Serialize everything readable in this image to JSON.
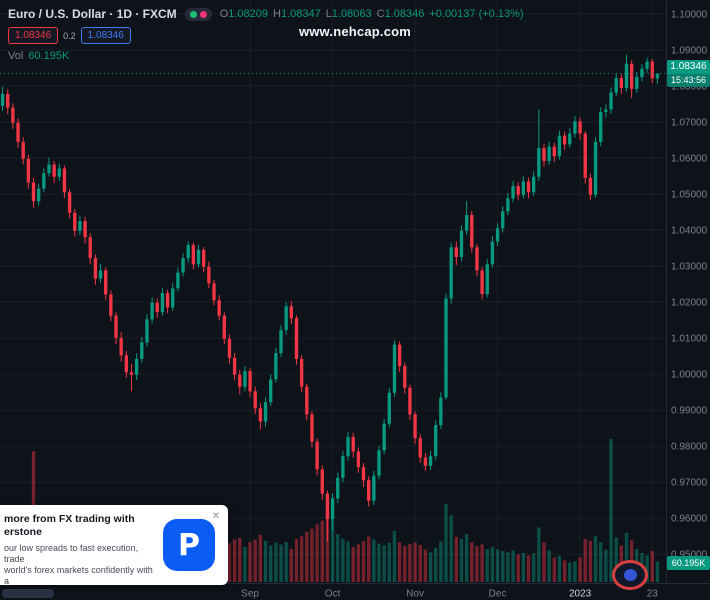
{
  "header": {
    "symbol_title": "Euro / U.S. Dollar · 1D · FXCM",
    "ohlc": {
      "o_label": "O",
      "o": "1.08209",
      "h_label": "H",
      "h": "1.08347",
      "l_label": "L",
      "l": "1.08063",
      "c_label": "C",
      "c": "1.08346",
      "change": "+0.00137 (+0.13%)"
    },
    "sell_badge": "1.08346",
    "spread": "0.2",
    "buy_badge": "1.08346",
    "volume_label": "Vol",
    "volume_value": "60.195K"
  },
  "watermark": "www.nehcap.com",
  "price_scale": {
    "last_price": "1.08346",
    "countdown": "15:43:56",
    "volume_badge": "60.195K"
  },
  "ad": {
    "title_line1": "more from FX trading with",
    "title_line2": "erstone",
    "body_line1": "our low spreads to fast execution, trade",
    "body_line2": "world's forex markets confidently with a",
    "body_line3": "ated broker.",
    "close_label": "✕",
    "logo_letter": "P"
  },
  "colors": {
    "up": "#089981",
    "down": "#f23645",
    "up_vol": "rgba(8,153,129,0.45)",
    "down_vol": "rgba(242,54,69,0.45)",
    "grid": "rgba(255,255,255,0.055)",
    "axis_border": "#232a3b",
    "axis_text": "#7b8190",
    "axis_text_major": "#d1d4dc"
  },
  "chart_data": {
    "type": "candlestick",
    "title": "Euro / U.S. Dollar",
    "timeframe": "1D",
    "exchange": "FXCM",
    "ylim": [
      0.9428,
      1.1039
    ],
    "y_ticks": {
      "start": 0.95,
      "end": 1.1,
      "step": 0.01
    },
    "volume_ylim": [
      0,
      430
    ],
    "x_ticks": [
      {
        "i": 48,
        "label": "Sep"
      },
      {
        "i": 64,
        "label": "Oct"
      },
      {
        "i": 80,
        "label": "Nov"
      },
      {
        "i": 96,
        "label": "Dec"
      },
      {
        "i": 112,
        "label": "2023",
        "major": true
      },
      {
        "i": 126,
        "label": "23"
      }
    ],
    "candles": [
      [
        1.0745,
        1.0798,
        1.0731,
        1.0778,
        96
      ],
      [
        1.0778,
        1.0791,
        1.0722,
        1.074,
        88
      ],
      [
        1.074,
        1.0752,
        1.0681,
        1.0698,
        84
      ],
      [
        1.0698,
        1.071,
        1.0628,
        1.0645,
        91
      ],
      [
        1.0645,
        1.0658,
        1.0582,
        1.0598,
        95
      ],
      [
        1.0598,
        1.0609,
        1.0515,
        1.0532,
        104
      ],
      [
        1.0532,
        1.0545,
        1.0462,
        1.048,
        388
      ],
      [
        1.048,
        1.0529,
        1.0468,
        1.0515,
        86
      ],
      [
        1.0515,
        1.0572,
        1.0506,
        1.0558,
        78
      ],
      [
        1.0558,
        1.0601,
        1.0549,
        1.0582,
        72
      ],
      [
        1.0582,
        1.0592,
        1.0531,
        1.0548,
        69
      ],
      [
        1.0548,
        1.0585,
        1.0536,
        1.0571,
        75
      ],
      [
        1.0571,
        1.0579,
        1.0489,
        1.0505,
        83
      ],
      [
        1.0505,
        1.0514,
        1.0432,
        1.0448,
        95
      ],
      [
        1.0448,
        1.0459,
        1.0382,
        1.0398,
        99
      ],
      [
        1.0398,
        1.0441,
        1.0386,
        1.0425,
        81
      ],
      [
        1.0425,
        1.0437,
        1.0363,
        1.038,
        90
      ],
      [
        1.038,
        1.0391,
        1.0306,
        1.0322,
        102
      ],
      [
        1.0322,
        1.0332,
        1.0248,
        1.0265,
        110
      ],
      [
        1.0265,
        1.0306,
        1.0252,
        1.0288,
        84
      ],
      [
        1.0288,
        1.0296,
        1.0205,
        1.0221,
        97
      ],
      [
        1.0221,
        1.0232,
        1.0147,
        1.0162,
        105
      ],
      [
        1.0162,
        1.0172,
        1.0083,
        1.01,
        118
      ],
      [
        1.01,
        1.0116,
        1.0035,
        1.0052,
        122
      ],
      [
        1.0052,
        1.0064,
        0.9989,
        1.0005,
        134
      ],
      [
        1.0005,
        1.0028,
        0.9952,
        0.9998,
        146
      ],
      [
        0.9998,
        1.0057,
        0.9983,
        1.0042,
        112
      ],
      [
        1.0042,
        1.0103,
        1.0031,
        1.0088,
        93
      ],
      [
        1.0088,
        1.0166,
        1.0076,
        1.0152,
        88
      ],
      [
        1.0152,
        1.0213,
        1.0141,
        1.0198,
        82
      ],
      [
        1.0198,
        1.0209,
        1.0156,
        1.0172,
        76
      ],
      [
        1.0172,
        1.0239,
        1.0162,
        1.0225,
        85
      ],
      [
        1.0225,
        1.0234,
        1.0169,
        1.0185,
        79
      ],
      [
        1.0185,
        1.0252,
        1.0175,
        1.0238,
        83
      ],
      [
        1.0238,
        1.0296,
        1.0229,
        1.0282,
        77
      ],
      [
        1.0282,
        1.0336,
        1.0271,
        1.0322,
        86
      ],
      [
        1.0322,
        1.0369,
        1.0309,
        1.0358,
        92
      ],
      [
        1.0358,
        1.0365,
        1.0291,
        1.0305,
        88
      ],
      [
        1.0305,
        1.036,
        1.0296,
        1.0345,
        74
      ],
      [
        1.0345,
        1.0353,
        1.0283,
        1.0298,
        81
      ],
      [
        1.0298,
        1.0313,
        1.0239,
        1.0252,
        89
      ],
      [
        1.0252,
        1.0262,
        1.0191,
        1.0205,
        94
      ],
      [
        1.0205,
        1.0219,
        1.0149,
        1.0162,
        99
      ],
      [
        1.0162,
        1.0171,
        1.0083,
        1.0098,
        108
      ],
      [
        1.0098,
        1.011,
        1.0029,
        1.0045,
        115
      ],
      [
        1.0045,
        1.0059,
        0.9983,
        0.9998,
        126
      ],
      [
        0.9998,
        1.0012,
        0.9943,
        0.9965,
        131
      ],
      [
        0.9965,
        1.0022,
        0.9952,
        1.0008,
        104
      ],
      [
        1.0008,
        1.0016,
        0.9937,
        0.9952,
        118
      ],
      [
        0.9952,
        0.9965,
        0.9889,
        0.9905,
        125
      ],
      [
        0.9905,
        0.9919,
        0.9846,
        0.9868,
        140
      ],
      [
        0.9868,
        0.9936,
        0.9853,
        0.9922,
        122
      ],
      [
        0.9922,
        0.9999,
        0.9911,
        0.9985,
        109
      ],
      [
        0.9985,
        1.0073,
        0.9976,
        1.0058,
        117
      ],
      [
        1.0058,
        1.0136,
        1.0047,
        1.0122,
        111
      ],
      [
        1.0122,
        1.0199,
        1.0109,
        1.0188,
        119
      ],
      [
        1.0188,
        1.0203,
        1.0139,
        1.0155,
        98
      ],
      [
        1.0155,
        1.0163,
        1.0026,
        1.0042,
        128
      ],
      [
        1.0042,
        1.0052,
        0.9949,
        0.9965,
        136
      ],
      [
        0.9965,
        0.9973,
        0.9871,
        0.9888,
        149
      ],
      [
        0.9888,
        0.9897,
        0.9796,
        0.9812,
        158
      ],
      [
        0.9812,
        0.9821,
        0.9719,
        0.9735,
        171
      ],
      [
        0.9735,
        0.9746,
        0.9651,
        0.9668,
        182
      ],
      [
        0.9668,
        0.9677,
        0.9535,
        0.9598,
        212
      ],
      [
        0.9598,
        0.9669,
        0.9566,
        0.9655,
        188
      ],
      [
        0.9655,
        0.9726,
        0.9642,
        0.9712,
        142
      ],
      [
        0.9712,
        0.9786,
        0.9699,
        0.9772,
        128
      ],
      [
        0.9772,
        0.9839,
        0.9759,
        0.9825,
        120
      ],
      [
        0.9825,
        0.9837,
        0.9767,
        0.9785,
        104
      ],
      [
        0.9785,
        0.9796,
        0.9726,
        0.9742,
        112
      ],
      [
        0.9742,
        0.9753,
        0.9687,
        0.9705,
        121
      ],
      [
        0.9705,
        0.9716,
        0.9632,
        0.9648,
        135
      ],
      [
        0.9648,
        0.9731,
        0.9637,
        0.9718,
        126
      ],
      [
        0.9718,
        0.9801,
        0.9707,
        0.9788,
        114
      ],
      [
        0.9788,
        0.9876,
        0.9777,
        0.9862,
        109
      ],
      [
        0.9862,
        0.9961,
        0.9852,
        0.9948,
        116
      ],
      [
        0.9948,
        1.0094,
        0.9937,
        1.0082,
        152
      ],
      [
        1.0082,
        1.0091,
        1.0006,
        1.0022,
        118
      ],
      [
        1.0022,
        1.0032,
        0.9946,
        0.9962,
        107
      ],
      [
        0.9962,
        0.9971,
        0.9873,
        0.9888,
        113
      ],
      [
        0.9888,
        0.9896,
        0.9807,
        0.9822,
        117
      ],
      [
        0.9822,
        0.9833,
        0.9753,
        0.9768,
        109
      ],
      [
        0.9768,
        0.9781,
        0.9731,
        0.9745,
        96
      ],
      [
        0.9745,
        0.9787,
        0.9734,
        0.9772,
        88
      ],
      [
        0.9772,
        0.9871,
        0.9761,
        0.9858,
        102
      ],
      [
        0.9858,
        0.9949,
        0.9847,
        0.9935,
        121
      ],
      [
        0.9935,
        1.0223,
        0.9929,
        1.021,
        232
      ],
      [
        1.021,
        1.0365,
        1.0196,
        1.0352,
        198
      ],
      [
        1.0352,
        1.0369,
        1.0303,
        1.0325,
        134
      ],
      [
        1.0325,
        1.0413,
        1.0313,
        1.0398,
        128
      ],
      [
        1.0398,
        1.0481,
        1.0386,
        1.0442,
        142
      ],
      [
        1.0442,
        1.0453,
        1.0337,
        1.0352,
        118
      ],
      [
        1.0352,
        1.0361,
        1.0271,
        1.0288,
        106
      ],
      [
        1.0288,
        1.0297,
        1.0207,
        1.0222,
        112
      ],
      [
        1.0222,
        1.0319,
        1.0213,
        1.0305,
        98
      ],
      [
        1.0305,
        1.0383,
        1.0296,
        1.0368,
        104
      ],
      [
        1.0368,
        1.0419,
        1.0356,
        1.0405,
        96
      ],
      [
        1.0405,
        1.0466,
        1.0393,
        1.0452,
        92
      ],
      [
        1.0452,
        1.0503,
        1.0441,
        1.0488,
        88
      ],
      [
        1.0488,
        1.0536,
        1.0477,
        1.0522,
        94
      ],
      [
        1.0522,
        1.0533,
        1.0483,
        1.0498,
        82
      ],
      [
        1.0498,
        1.0549,
        1.0487,
        1.0535,
        86
      ],
      [
        1.0535,
        1.0546,
        1.0489,
        1.0505,
        79
      ],
      [
        1.0505,
        1.0563,
        1.0495,
        1.0548,
        85
      ],
      [
        1.0548,
        1.0736,
        1.0537,
        1.0628,
        162
      ],
      [
        1.0628,
        1.0639,
        1.0576,
        1.0592,
        118
      ],
      [
        1.0592,
        1.0646,
        1.0581,
        1.0632,
        94
      ],
      [
        1.0632,
        1.0643,
        1.0589,
        1.0605,
        72
      ],
      [
        1.0605,
        1.0676,
        1.0596,
        1.0662,
        78
      ],
      [
        1.0662,
        1.0673,
        1.0623,
        1.0638,
        64
      ],
      [
        1.0638,
        1.0683,
        1.0629,
        1.0668,
        58
      ],
      [
        1.0668,
        1.0716,
        1.0657,
        1.0702,
        61
      ],
      [
        1.0702,
        1.0713,
        1.0651,
        1.0668,
        73
      ],
      [
        1.0668,
        1.0675,
        1.0529,
        1.0545,
        128
      ],
      [
        1.0545,
        1.0557,
        1.0484,
        1.0498,
        122
      ],
      [
        1.0498,
        1.0659,
        1.0489,
        1.0645,
        136
      ],
      [
        1.0645,
        1.0741,
        1.0633,
        1.0728,
        118
      ],
      [
        1.0728,
        1.0749,
        1.0713,
        1.0735,
        96
      ],
      [
        1.0735,
        1.0796,
        1.0723,
        1.0782,
        424
      ],
      [
        1.0782,
        1.0836,
        1.0771,
        1.0822,
        132
      ],
      [
        1.0822,
        1.0833,
        1.0779,
        1.0795,
        108
      ],
      [
        1.0795,
        1.0887,
        1.0785,
        1.0862,
        146
      ],
      [
        1.0862,
        1.0871,
        1.0766,
        1.0792,
        124
      ],
      [
        1.0792,
        1.0839,
        1.0781,
        1.0825,
        98
      ],
      [
        1.0825,
        1.0861,
        1.0813,
        1.0848,
        86
      ],
      [
        1.0848,
        1.0879,
        1.0837,
        1.0868,
        79
      ],
      [
        1.0868,
        1.0875,
        1.0808,
        1.0821,
        92
      ],
      [
        1.08209,
        1.08347,
        1.08063,
        1.08346,
        60.195
      ]
    ]
  }
}
